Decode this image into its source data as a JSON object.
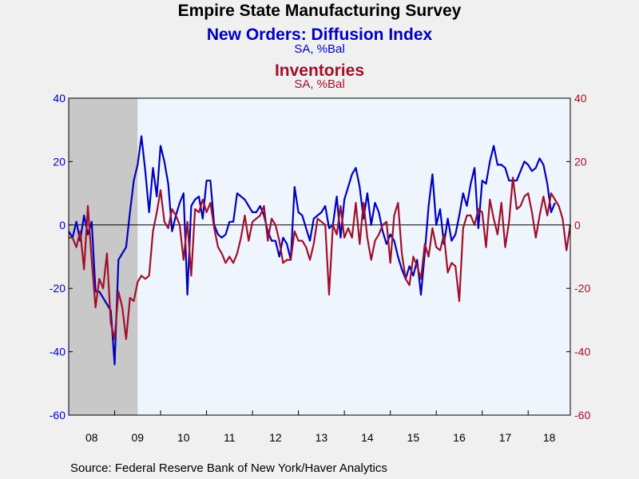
{
  "title": "Empire State Manufacturing Survey",
  "source": "Source:  Federal Reserve Bank of New York/Haver Analytics",
  "colors": {
    "new_orders": "#0000c0",
    "inventories": "#a0102a",
    "plot_bg": "#eef5fd",
    "recession": "#c8c8c8"
  },
  "chart_data": {
    "type": "line",
    "title": "Empire State Manufacturing Survey",
    "recession_shading": {
      "start": 2008.0,
      "end": 2009.5
    },
    "x_range": [
      2008.0,
      2018.917
    ],
    "x_tick_labels": [
      "08",
      "09",
      "10",
      "11",
      "12",
      "13",
      "14",
      "15",
      "16",
      "17",
      "18"
    ],
    "y_left": {
      "range": [
        -60,
        40
      ],
      "ticks": [
        40,
        20,
        0,
        -20,
        -40,
        -60
      ]
    },
    "y_right": {
      "range": [
        -60,
        40
      ],
      "ticks": [
        40,
        20,
        0,
        -20,
        -40,
        -60
      ]
    },
    "zero_line": true,
    "grid": false,
    "series": [
      {
        "name": "New Orders: Diffusion Index",
        "units": "SA, %Bal",
        "axis": "left",
        "color": "#0000c0",
        "start": 2008.0,
        "values": [
          -2,
          -4,
          1,
          -5,
          3,
          -3,
          1,
          -21,
          -21,
          -23,
          -25,
          -27,
          -44,
          -11,
          -9,
          -7,
          4,
          14,
          19,
          28,
          17,
          4,
          18,
          9,
          25,
          20,
          13,
          -2,
          3,
          7,
          10,
          -22,
          6,
          8,
          9,
          2,
          14,
          14,
          0,
          -3,
          -4,
          -3,
          1,
          1,
          10,
          9,
          8,
          6,
          4,
          4,
          6,
          3,
          -2,
          -5,
          -5,
          -10,
          -4,
          -6,
          -11,
          12,
          4,
          3,
          -1,
          -5,
          2,
          3,
          4,
          6,
          -1,
          0,
          9,
          -4,
          8,
          12,
          16,
          18,
          12,
          2,
          10,
          0,
          7,
          4,
          -2,
          -6,
          -3,
          -5,
          -10,
          -14,
          -17,
          -13,
          -16,
          -11,
          -22,
          -9,
          6,
          16,
          0,
          5,
          -6,
          2,
          -5,
          -3,
          3,
          10,
          6,
          13,
          18,
          -1,
          14,
          13,
          20,
          25,
          19,
          19,
          18,
          14,
          14,
          14,
          17,
          20,
          19,
          17,
          18,
          21,
          19,
          13,
          4,
          7
        ]
      },
      {
        "name": "Inventories",
        "units": "SA, %Bal",
        "axis": "right",
        "color": "#a0102a",
        "start": 2008.0,
        "values": [
          -4,
          -4,
          -7,
          -2,
          -14,
          6,
          -11,
          -26,
          -17,
          -20,
          -9,
          -31,
          -36,
          -21,
          -26,
          -36,
          -23,
          -24,
          -18,
          -16,
          -17,
          -16,
          -2,
          4,
          11,
          1,
          -1,
          5,
          3,
          0,
          -11,
          1,
          -16,
          5,
          4,
          8,
          4,
          7,
          -1,
          -7,
          -9,
          -12,
          -10,
          -12,
          -9,
          -4,
          3,
          -5,
          1,
          2,
          3,
          6,
          -5,
          2,
          0,
          -5,
          -12,
          -11,
          -11,
          -2,
          -5,
          -5,
          -7,
          -11,
          -6,
          2,
          1,
          0,
          -22,
          0,
          -3,
          6,
          -4,
          -1,
          -4,
          7,
          -6,
          7,
          -4,
          -11,
          -5,
          -3,
          0,
          1,
          -12,
          3,
          7,
          -9,
          -17,
          -19,
          -10,
          -13,
          -17,
          -6,
          -10,
          -1,
          -7,
          -8,
          -3,
          -15,
          -12,
          -13,
          -24,
          -1,
          3,
          3,
          0,
          5,
          4,
          -7,
          8,
          2,
          -3,
          7,
          -7,
          1,
          15,
          5,
          6,
          9,
          10,
          4,
          -4,
          3,
          9,
          3,
          10,
          8,
          6,
          2,
          -8,
          0
        ]
      }
    ],
    "series_labels": [
      {
        "name": "New Orders: Diffusion Index",
        "units": "SA, %Bal"
      },
      {
        "name": "Inventories",
        "units": "SA, %Bal"
      }
    ]
  }
}
